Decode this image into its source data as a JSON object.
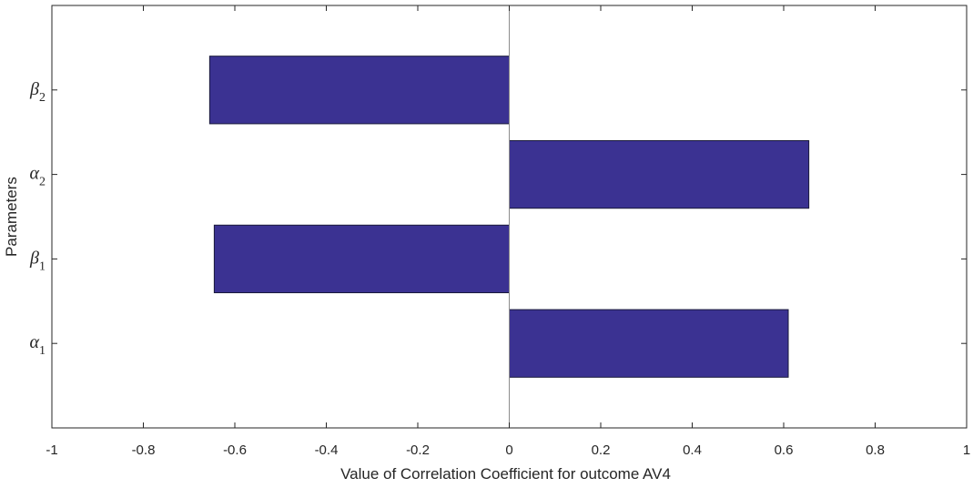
{
  "chart_data": {
    "type": "bar",
    "orientation": "horizontal",
    "categories": [
      {
        "symbol": "α",
        "sub": "1"
      },
      {
        "symbol": "β",
        "sub": "1"
      },
      {
        "symbol": "α",
        "sub": "2"
      },
      {
        "symbol": "β",
        "sub": "2"
      }
    ],
    "values": [
      0.61,
      -0.645,
      0.655,
      -0.655
    ],
    "xlabel": "Value of Correlation Coefficient for outcome AV4",
    "ylabel": "Parameters",
    "xlim": [
      -1,
      1
    ],
    "xticks": [
      -1,
      -0.8,
      -0.6,
      -0.4,
      -0.2,
      0,
      0.2,
      0.4,
      0.6,
      0.8,
      1
    ],
    "xtick_labels": [
      "-1",
      "-0.8",
      "-0.6",
      "-0.4",
      "-0.2",
      "0",
      "0.2",
      "0.4",
      "0.6",
      "0.8",
      "1"
    ],
    "grid": false,
    "bar_color": "#3b3292",
    "bar_edge_color": "#1a1a3a",
    "axis_color": "#262626",
    "zero_line_color": "#8c8c8c"
  }
}
